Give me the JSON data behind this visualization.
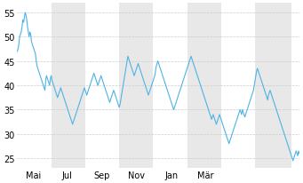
{
  "background_color": "#ffffff",
  "plot_bg_color": "#ffffff",
  "line_color": "#4db3e6",
  "line_width": 0.8,
  "ylim": [
    23,
    57
  ],
  "yticks": [
    25,
    30,
    35,
    40,
    45,
    50,
    55
  ],
  "xlabel_months": [
    "Mai",
    "Jul",
    "Sep",
    "Nov",
    "Jan",
    "Mär"
  ],
  "month_positions": [
    20,
    63,
    107,
    151,
    195,
    238
  ],
  "grid_color": "#cccccc",
  "alt_band_color": "#e8e8e8",
  "band_ranges": [
    [
      43,
      86
    ],
    [
      129,
      172
    ],
    [
      215,
      258
    ],
    [
      301,
      347
    ]
  ],
  "prices": [
    47.0,
    47.5,
    48.5,
    50.0,
    50.5,
    51.0,
    52.0,
    53.5,
    53.0,
    54.0,
    55.0,
    54.5,
    53.5,
    52.0,
    51.0,
    50.0,
    51.0,
    50.5,
    49.0,
    48.5,
    48.0,
    47.5,
    47.0,
    46.5,
    45.0,
    44.0,
    43.5,
    43.0,
    42.5,
    42.0,
    41.5,
    41.0,
    40.5,
    40.0,
    39.5,
    39.0,
    41.0,
    42.0,
    41.5,
    41.0,
    40.5,
    40.0,
    41.5,
    42.0,
    41.0,
    40.5,
    40.0,
    39.5,
    39.0,
    38.5,
    38.0,
    37.5,
    38.0,
    38.5,
    39.0,
    39.5,
    39.0,
    38.5,
    38.0,
    37.5,
    37.0,
    36.5,
    36.0,
    35.5,
    35.0,
    34.5,
    34.0,
    33.5,
    33.0,
    32.5,
    32.0,
    32.5,
    33.0,
    33.5,
    34.0,
    34.5,
    35.0,
    35.5,
    36.0,
    36.5,
    37.0,
    37.5,
    38.0,
    38.5,
    39.0,
    39.5,
    39.0,
    38.5,
    38.0,
    38.5,
    39.0,
    39.5,
    40.0,
    40.5,
    41.0,
    41.5,
    42.0,
    42.5,
    42.0,
    41.5,
    41.0,
    40.5,
    40.0,
    40.5,
    41.0,
    41.5,
    42.0,
    41.5,
    41.0,
    40.5,
    40.0,
    39.5,
    39.0,
    38.5,
    38.0,
    37.5,
    37.0,
    36.5,
    37.0,
    37.5,
    38.0,
    38.5,
    39.0,
    38.5,
    38.0,
    37.5,
    37.0,
    36.5,
    36.0,
    35.5,
    36.0,
    37.0,
    38.0,
    39.0,
    40.0,
    41.0,
    42.0,
    43.0,
    44.0,
    45.0,
    46.0,
    45.5,
    45.0,
    44.5,
    44.0,
    43.5,
    43.0,
    42.5,
    42.0,
    42.5,
    43.0,
    43.5,
    44.0,
    44.5,
    44.0,
    43.5,
    43.0,
    42.5,
    42.0,
    41.5,
    41.0,
    40.5,
    40.0,
    39.5,
    39.0,
    38.5,
    38.0,
    38.5,
    39.0,
    39.5,
    40.0,
    40.5,
    41.0,
    41.5,
    42.0,
    43.0,
    44.0,
    44.5,
    45.0,
    44.5,
    44.0,
    43.5,
    43.0,
    42.5,
    42.0,
    41.5,
    41.0,
    40.5,
    40.0,
    39.5,
    39.0,
    38.5,
    38.0,
    37.5,
    37.0,
    36.5,
    36.0,
    35.5,
    35.0,
    35.5,
    36.0,
    36.5,
    37.0,
    37.5,
    38.0,
    38.5,
    39.0,
    39.5,
    40.0,
    40.5,
    41.0,
    41.5,
    42.0,
    42.5,
    43.0,
    43.5,
    44.0,
    44.5,
    45.0,
    45.5,
    46.0,
    45.5,
    45.0,
    44.5,
    44.0,
    43.5,
    43.0,
    42.5,
    42.0,
    41.5,
    41.0,
    40.5,
    40.0,
    39.5,
    39.0,
    38.5,
    38.0,
    37.5,
    37.0,
    36.5,
    36.0,
    35.5,
    35.0,
    34.5,
    34.0,
    33.5,
    33.0,
    33.5,
    34.0,
    33.5,
    33.0,
    32.5,
    32.0,
    32.5,
    33.0,
    33.5,
    34.0,
    33.5,
    33.0,
    32.5,
    32.0,
    31.5,
    31.0,
    30.5,
    30.0,
    29.5,
    29.0,
    28.5,
    28.0,
    28.5,
    29.0,
    29.5,
    30.0,
    30.5,
    31.0,
    31.5,
    32.0,
    32.5,
    33.0,
    33.5,
    34.0,
    34.5,
    35.0,
    34.5,
    34.0,
    35.0,
    34.5,
    34.0,
    33.5,
    34.0,
    34.5,
    35.0,
    35.5,
    36.0,
    36.5,
    37.0,
    37.5,
    38.0,
    38.5,
    39.0,
    40.0,
    41.0,
    42.0,
    43.0,
    43.5,
    43.0,
    42.5,
    42.0,
    41.5,
    41.0,
    40.5,
    40.0,
    39.5,
    39.0,
    38.5,
    38.0,
    37.5,
    37.0,
    38.0,
    38.5,
    39.0,
    38.5,
    38.0,
    37.5,
    37.0,
    36.5,
    36.0,
    35.5,
    35.0,
    34.5,
    34.0,
    33.5,
    33.0,
    32.5,
    32.0,
    31.5,
    31.0,
    30.5,
    30.0,
    29.5,
    29.0,
    28.5,
    28.0,
    27.5,
    27.0,
    26.5,
    26.0,
    25.5,
    25.0,
    24.5,
    25.0,
    25.5,
    26.0,
    26.5,
    26.0,
    25.5,
    26.5,
    26.0
  ]
}
